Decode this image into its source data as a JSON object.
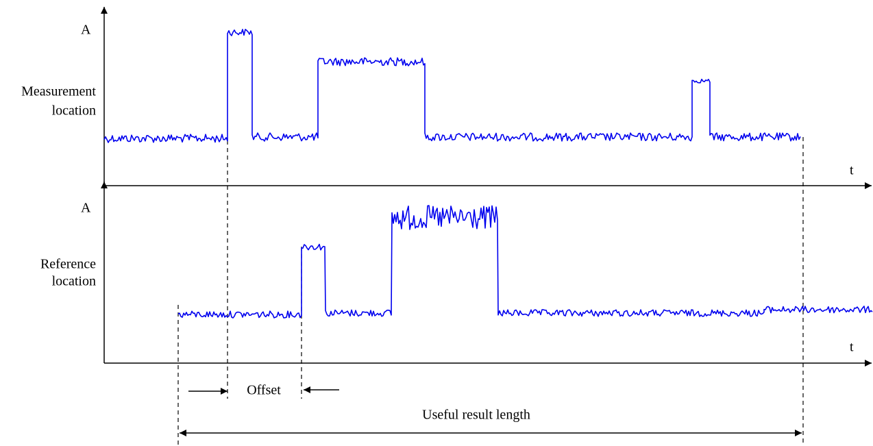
{
  "top_plot": {
    "y_label": "A",
    "label_lines": [
      "Measurement",
      "location"
    ],
    "x_label": "t"
  },
  "bottom_plot": {
    "y_label": "A",
    "label_lines": [
      "Reference",
      "location"
    ],
    "x_label": "t"
  },
  "offset_label": "Offset",
  "length_label": "Useful result length"
}
